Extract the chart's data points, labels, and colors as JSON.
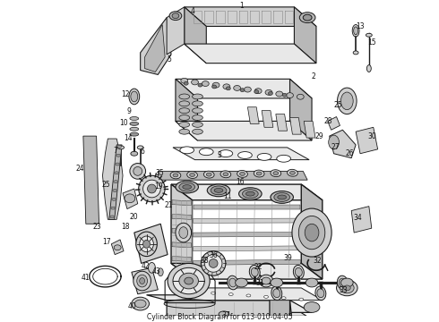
{
  "title": "Cylinder Block Diagram for 613-010-04-05",
  "bg": "#ffffff",
  "lc": "#1a1a1a",
  "gray1": "#e8e8e8",
  "gray2": "#d0d0d0",
  "gray3": "#b8b8b8",
  "gray4": "#989898",
  "gray5": "#787878",
  "figsize": [
    4.9,
    3.6
  ],
  "dpi": 100
}
